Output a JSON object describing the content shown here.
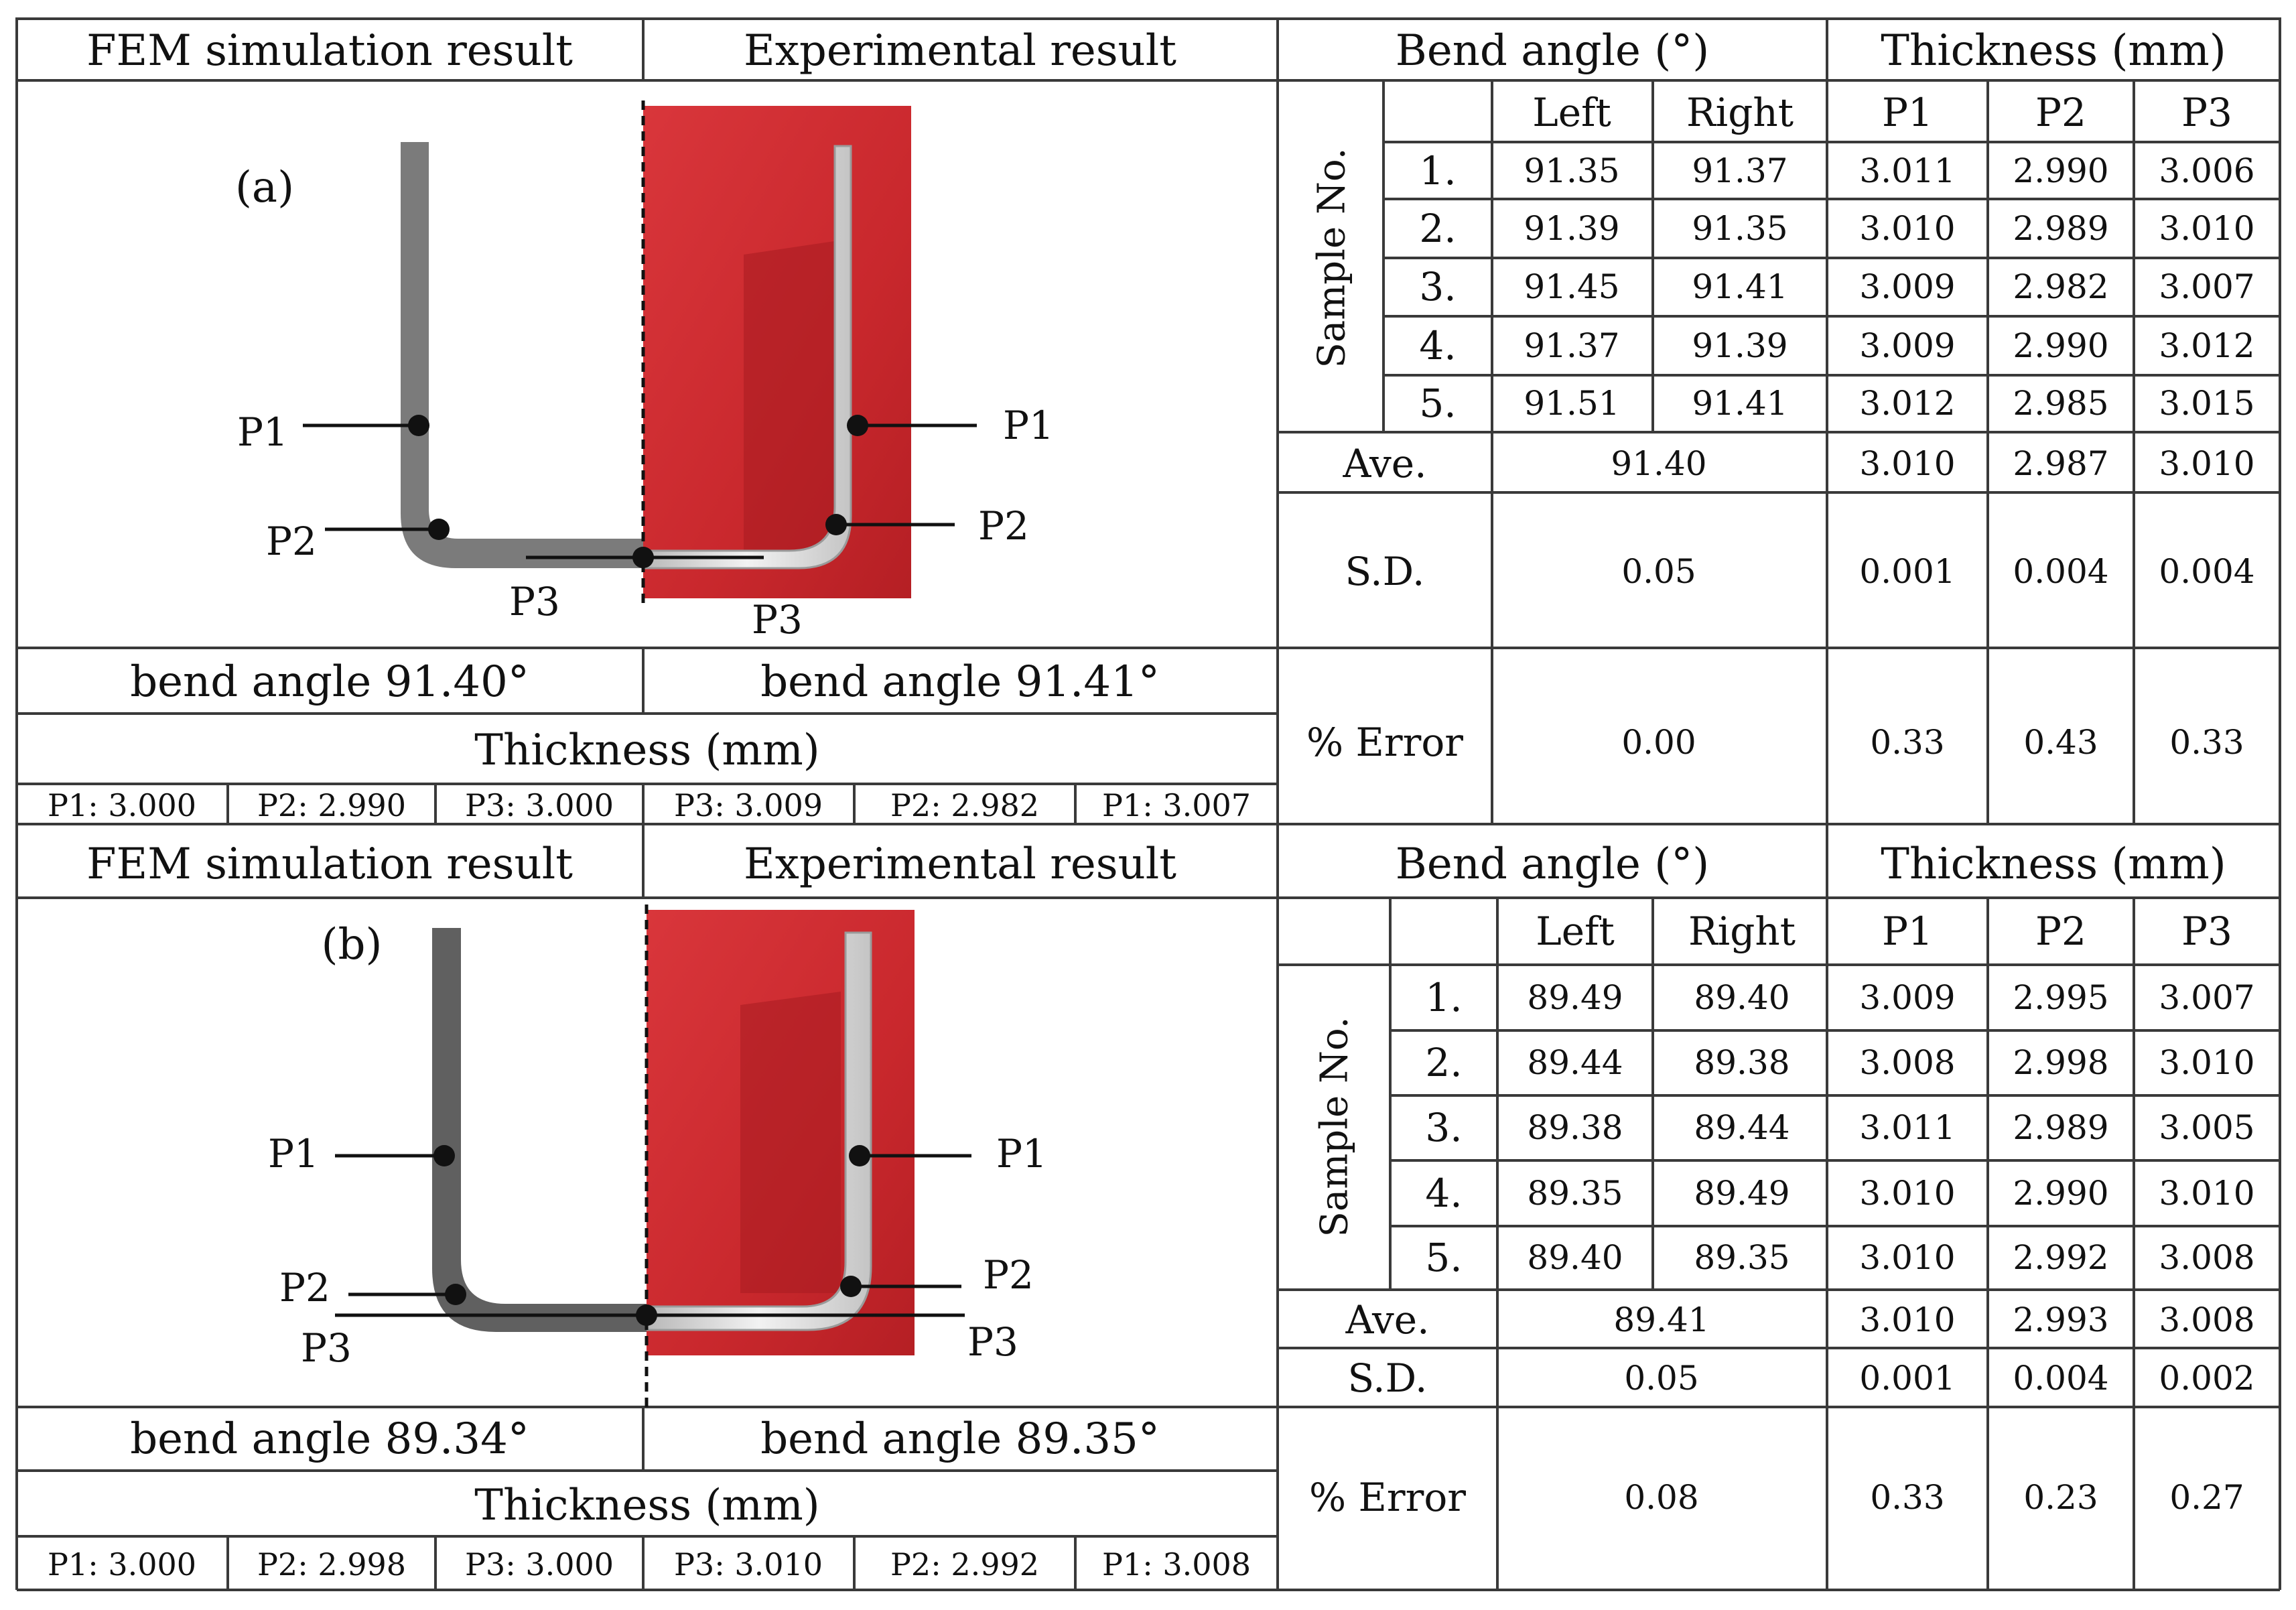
{
  "panels": [
    {
      "label": "(a)",
      "header": {
        "fem": "FEM simulation result",
        "exp": "Experimental result"
      },
      "points": {
        "p1": "P1",
        "p2": "P2",
        "p3": "P3"
      },
      "fem_bend": "bend angle 91.40°",
      "exp_bend": "bend angle 91.41°",
      "thickness_title": "Thickness (mm)",
      "thickness_cells": [
        "P1: 3.000",
        "P2: 2.990",
        "P3: 3.000",
        "P3: 3.009",
        "P2: 2.982",
        "P1: 3.007"
      ],
      "table": {
        "bend_header": "Bend angle (°)",
        "thick_header": "Thickness (mm)",
        "subheaders": [
          "Left",
          "Right",
          "P1",
          "P2",
          "P3"
        ],
        "sample_label": "Sample No.",
        "rows": [
          [
            "1.",
            "91.35",
            "91.37",
            "3.011",
            "2.990",
            "3.006"
          ],
          [
            "2.",
            "91.39",
            "91.35",
            "3.010",
            "2.989",
            "3.010"
          ],
          [
            "3.",
            "91.45",
            "91.41",
            "3.009",
            "2.982",
            "3.007"
          ],
          [
            "4.",
            "91.37",
            "91.39",
            "3.009",
            "2.990",
            "3.012"
          ],
          [
            "5.",
            "91.51",
            "91.41",
            "3.012",
            "2.985",
            "3.015"
          ]
        ],
        "ave": [
          "Ave.",
          "91.40",
          "3.010",
          "2.987",
          "3.010"
        ],
        "sd": [
          "S.D.",
          "0.05",
          "0.001",
          "0.004",
          "0.004"
        ],
        "err": [
          "% Error",
          "0.00",
          "0.33",
          "0.43",
          "0.33"
        ]
      }
    },
    {
      "label": "(b)",
      "header": {
        "fem": "FEM simulation result",
        "exp": "Experimental result"
      },
      "points": {
        "p1": "P1",
        "p2": "P2",
        "p3": "P3"
      },
      "fem_bend": "bend angle 89.34°",
      "exp_bend": "bend angle 89.35°",
      "thickness_title": "Thickness (mm)",
      "thickness_cells": [
        "P1: 3.000",
        "P2: 2.998",
        "P3: 3.000",
        "P3: 3.010",
        "P2: 2.992",
        "P1: 3.008"
      ],
      "table": {
        "bend_header": "Bend angle (°)",
        "thick_header": "Thickness (mm)",
        "subheaders": [
          "Left",
          "Right",
          "P1",
          "P2",
          "P3"
        ],
        "sample_label": "Sample No.",
        "rows": [
          [
            "1.",
            "89.49",
            "89.40",
            "3.009",
            "2.995",
            "3.007"
          ],
          [
            "2.",
            "89.44",
            "89.38",
            "3.008",
            "2.998",
            "3.010"
          ],
          [
            "3.",
            "89.38",
            "89.44",
            "3.011",
            "2.989",
            "3.005"
          ],
          [
            "4.",
            "89.35",
            "89.49",
            "3.010",
            "2.990",
            "3.010"
          ],
          [
            "5.",
            "89.40",
            "89.35",
            "3.010",
            "2.992",
            "3.008"
          ]
        ],
        "ave": [
          "Ave.",
          "89.41",
          "3.010",
          "2.993",
          "3.008"
        ],
        "sd": [
          "S.D.",
          "0.05",
          "0.001",
          "0.004",
          "0.002"
        ],
        "err": [
          "% Error",
          "0.08",
          "0.33",
          "0.23",
          "0.27"
        ]
      }
    }
  ],
  "colors": {
    "grid": "#3a3a3a",
    "photo_bg": "#d42a2f",
    "fem_part": "#7b7b7b",
    "exp_part": "#dcdcdc"
  }
}
